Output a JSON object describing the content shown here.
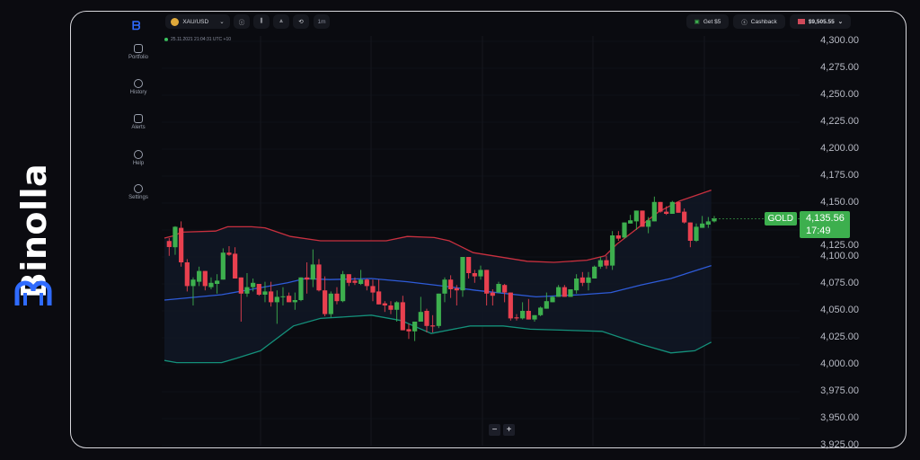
{
  "brand": {
    "name": "Binolla",
    "color": "#2f6bff"
  },
  "sidebar": {
    "items": [
      {
        "label": "Portfolio",
        "icon": "briefcase-icon"
      },
      {
        "label": "History",
        "icon": "history-icon"
      },
      {
        "label": "Alerts",
        "icon": "alarm-icon"
      },
      {
        "label": "Help",
        "icon": "lifebuoy-icon"
      },
      {
        "label": "Settings",
        "icon": "gear-icon"
      }
    ]
  },
  "toolbar": {
    "asset": "XAU/USD",
    "timeframe": "1m",
    "get_bonus": "Get $5",
    "cashback": "Cashback",
    "balance": "$9,505.55"
  },
  "timestamp": "25.11.2021  21:04:31  UTC +10",
  "price": {
    "symbol": "GOLD",
    "value": "4,135.56",
    "countdown": "17:49"
  },
  "zoom": {
    "minus": "−",
    "plus": "+"
  },
  "colors": {
    "up": "#3daf4e",
    "down": "#e8404f",
    "upper_band": "#c8303f",
    "middle_band": "#2e5bd8",
    "lower_band": "#14907a"
  },
  "chart_data": {
    "type": "candlestick",
    "yticks": [
      "4,300.00",
      "4,275.00",
      "4,250.00",
      "4,225.00",
      "4,200.00",
      "4,175.00",
      "4,150.00",
      "4,125.00",
      "4,100.00",
      "4,075.00",
      "4,050.00",
      "4,025.00",
      "4,000.00",
      "3,975.00",
      "3,950.00",
      "3,925.00"
    ],
    "ylim": [
      3925,
      4300
    ],
    "ohlc": [
      [
        4114.8,
        4117.5,
        4101,
        4109.2
      ],
      [
        4109,
        4128.5,
        4102,
        4128
      ],
      [
        4127,
        4133,
        4091,
        4095
      ],
      [
        4095,
        4098,
        4068,
        4073
      ],
      [
        4073,
        4081,
        4055,
        4079
      ],
      [
        4077,
        4091,
        4073,
        4087
      ],
      [
        4087,
        4087,
        4069,
        4073
      ],
      [
        4072,
        4081,
        4070,
        4076
      ],
      [
        4075,
        4084,
        4066,
        4078
      ],
      [
        4079,
        4108,
        4079,
        4104
      ],
      [
        4104,
        4110,
        4101,
        4102
      ],
      [
        4103,
        4109,
        4080,
        4080
      ],
      [
        4081,
        4081,
        4040,
        4066
      ],
      [
        4066,
        4085,
        4063,
        4072
      ],
      [
        4072,
        4080,
        4068,
        4076
      ],
      [
        4075,
        4075,
        4064,
        4065
      ],
      [
        4065,
        4077,
        4058,
        4068
      ],
      [
        4068,
        4077,
        4054,
        4058
      ],
      [
        4058,
        4069,
        4038,
        4063
      ],
      [
        4063,
        4072,
        4055,
        4063.5
      ],
      [
        4064,
        4067,
        4058,
        4058
      ],
      [
        4058,
        4067,
        4051,
        4060
      ],
      [
        4060,
        4081,
        4059,
        4081
      ],
      [
        4081,
        4095,
        4066,
        4079
      ],
      [
        4079,
        4107,
        4072,
        4093
      ],
      [
        4093,
        4098,
        4068,
        4069
      ],
      [
        4069,
        4082,
        4045,
        4047
      ],
      [
        4047,
        4068,
        4044,
        4066
      ],
      [
        4066,
        4072,
        4056,
        4059
      ],
      [
        4059,
        4087,
        4058,
        4084
      ],
      [
        4084,
        4084,
        4073,
        4076
      ],
      [
        4078,
        4081,
        4074,
        4076
      ],
      [
        4075,
        4088,
        4074,
        4079
      ],
      [
        4079,
        4080,
        4069,
        4073
      ],
      [
        4073,
        4079,
        4059,
        4067
      ],
      [
        4068,
        4079,
        4056,
        4056
      ],
      [
        4057,
        4059,
        4049,
        4055
      ],
      [
        4055,
        4059,
        4047,
        4051
      ],
      [
        4051,
        4059,
        4040,
        4058
      ],
      [
        4058,
        4064,
        4032,
        4032
      ],
      [
        4033,
        4038,
        4024,
        4031
      ],
      [
        4031,
        4040,
        4022,
        4040
      ],
      [
        4040,
        4063,
        4040,
        4049
      ],
      [
        4050,
        4052,
        4030,
        4036
      ],
      [
        4036.5,
        4046,
        4030,
        4035.5
      ],
      [
        4036,
        4066,
        4034,
        4066
      ],
      [
        4066,
        4081,
        4058,
        4079
      ],
      [
        4079,
        4083,
        4062,
        4070
      ],
      [
        4071,
        4074,
        4055,
        4069
      ],
      [
        4069,
        4100,
        4063,
        4100
      ],
      [
        4100,
        4100,
        4080,
        4085
      ],
      [
        4085,
        4088,
        4076,
        4082
      ],
      [
        4082,
        4092,
        4079,
        4088
      ],
      [
        4088,
        4088,
        4055,
        4066
      ],
      [
        4067,
        4070,
        4055,
        4064
      ],
      [
        4067,
        4077,
        4067,
        4075
      ],
      [
        4074,
        4075,
        4058,
        4067
      ],
      [
        4067,
        4067,
        4041,
        4043
      ],
      [
        4044,
        4047,
        4041,
        4043
      ],
      [
        4043,
        4058,
        4042,
        4050
      ],
      [
        4050,
        4061,
        4042,
        4042
      ],
      [
        4042,
        4046,
        4040,
        4046
      ],
      [
        4046,
        4054,
        4045,
        4053
      ],
      [
        4052,
        4067,
        4052,
        4059
      ],
      [
        4058,
        4064,
        4058,
        4063
      ],
      [
        4063,
        4074,
        4063,
        4072
      ],
      [
        4072,
        4074,
        4063,
        4063
      ],
      [
        4063,
        4070,
        4063,
        4070
      ],
      [
        4069,
        4084,
        4066,
        4080
      ],
      [
        4081,
        4086,
        4073,
        4076
      ],
      [
        4076,
        4086,
        4069,
        4081
      ],
      [
        4080,
        4092,
        4080,
        4091
      ],
      [
        4091,
        4100,
        4089,
        4097
      ],
      [
        4097,
        4101,
        4089,
        4092
      ],
      [
        4092,
        4124,
        4088,
        4120
      ],
      [
        4120,
        4124,
        4115,
        4117
      ],
      [
        4118,
        4132,
        4117,
        4132
      ],
      [
        4131,
        4139,
        4131,
        4134
      ],
      [
        4133,
        4143,
        4125,
        4143
      ],
      [
        4143,
        4143,
        4128,
        4128
      ],
      [
        4128,
        4137,
        4122,
        4134
      ],
      [
        4133,
        4156,
        4133,
        4151
      ],
      [
        4151,
        4151,
        4141,
        4142
      ],
      [
        4142,
        4147,
        4139,
        4140
      ],
      [
        4140,
        4152,
        4140,
        4151
      ],
      [
        4151,
        4151,
        4141,
        4141
      ],
      [
        4142,
        4145,
        4131,
        4132
      ],
      [
        4132,
        4132,
        4109,
        4115
      ],
      [
        4115,
        4131,
        4114,
        4128
      ],
      [
        4127,
        4138,
        4127,
        4131
      ],
      [
        4130,
        4137,
        4127,
        4133
      ],
      [
        4133,
        4138,
        4132,
        4135.56
      ]
    ],
    "bollinger": {
      "upper": [
        [
          -0.8,
          4117.5
        ],
        [
          1,
          4120
        ],
        [
          2,
          4123
        ],
        [
          7.75,
          4124
        ],
        [
          9.75,
          4128
        ],
        [
          13.75,
          4128
        ],
        [
          16,
          4127
        ],
        [
          20.25,
          4119
        ],
        [
          25.25,
          4115
        ],
        [
          36.25,
          4115
        ],
        [
          39.75,
          4119
        ],
        [
          44.25,
          4118
        ],
        [
          46.75,
          4115
        ],
        [
          50.75,
          4104
        ],
        [
          59.75,
          4096
        ],
        [
          64.25,
          4095
        ],
        [
          69.75,
          4097
        ],
        [
          72.75,
          4101
        ],
        [
          74.75,
          4112
        ],
        [
          78.75,
          4129
        ],
        [
          81.75,
          4142
        ],
        [
          85.25,
          4152
        ],
        [
          90.5,
          4162
        ]
      ],
      "middle": [
        [
          -0.8,
          4060
        ],
        [
          8.75,
          4065
        ],
        [
          13.75,
          4070
        ],
        [
          19.75,
          4076
        ],
        [
          22.75,
          4080
        ],
        [
          26.75,
          4079
        ],
        [
          33.75,
          4080
        ],
        [
          39.75,
          4077
        ],
        [
          45.75,
          4073
        ],
        [
          51.25,
          4069
        ],
        [
          61.25,
          4063
        ],
        [
          68.75,
          4065
        ],
        [
          73.75,
          4067
        ],
        [
          78.75,
          4074
        ],
        [
          83.75,
          4080
        ],
        [
          90.5,
          4092
        ]
      ],
      "lower": [
        [
          -0.8,
          4004
        ],
        [
          1.25,
          4002
        ],
        [
          8.75,
          4002
        ],
        [
          11.25,
          4006
        ],
        [
          15.25,
          4013
        ],
        [
          20.75,
          4036
        ],
        [
          25.25,
          4043
        ],
        [
          33.75,
          4046
        ],
        [
          38.75,
          4041
        ],
        [
          43.75,
          4029
        ],
        [
          50.25,
          4036
        ],
        [
          55.75,
          4036
        ],
        [
          60.25,
          4033
        ],
        [
          72.25,
          4031
        ],
        [
          78.75,
          4019
        ],
        [
          83.75,
          4011
        ],
        [
          87.75,
          4013
        ],
        [
          90.5,
          4021
        ]
      ]
    }
  }
}
